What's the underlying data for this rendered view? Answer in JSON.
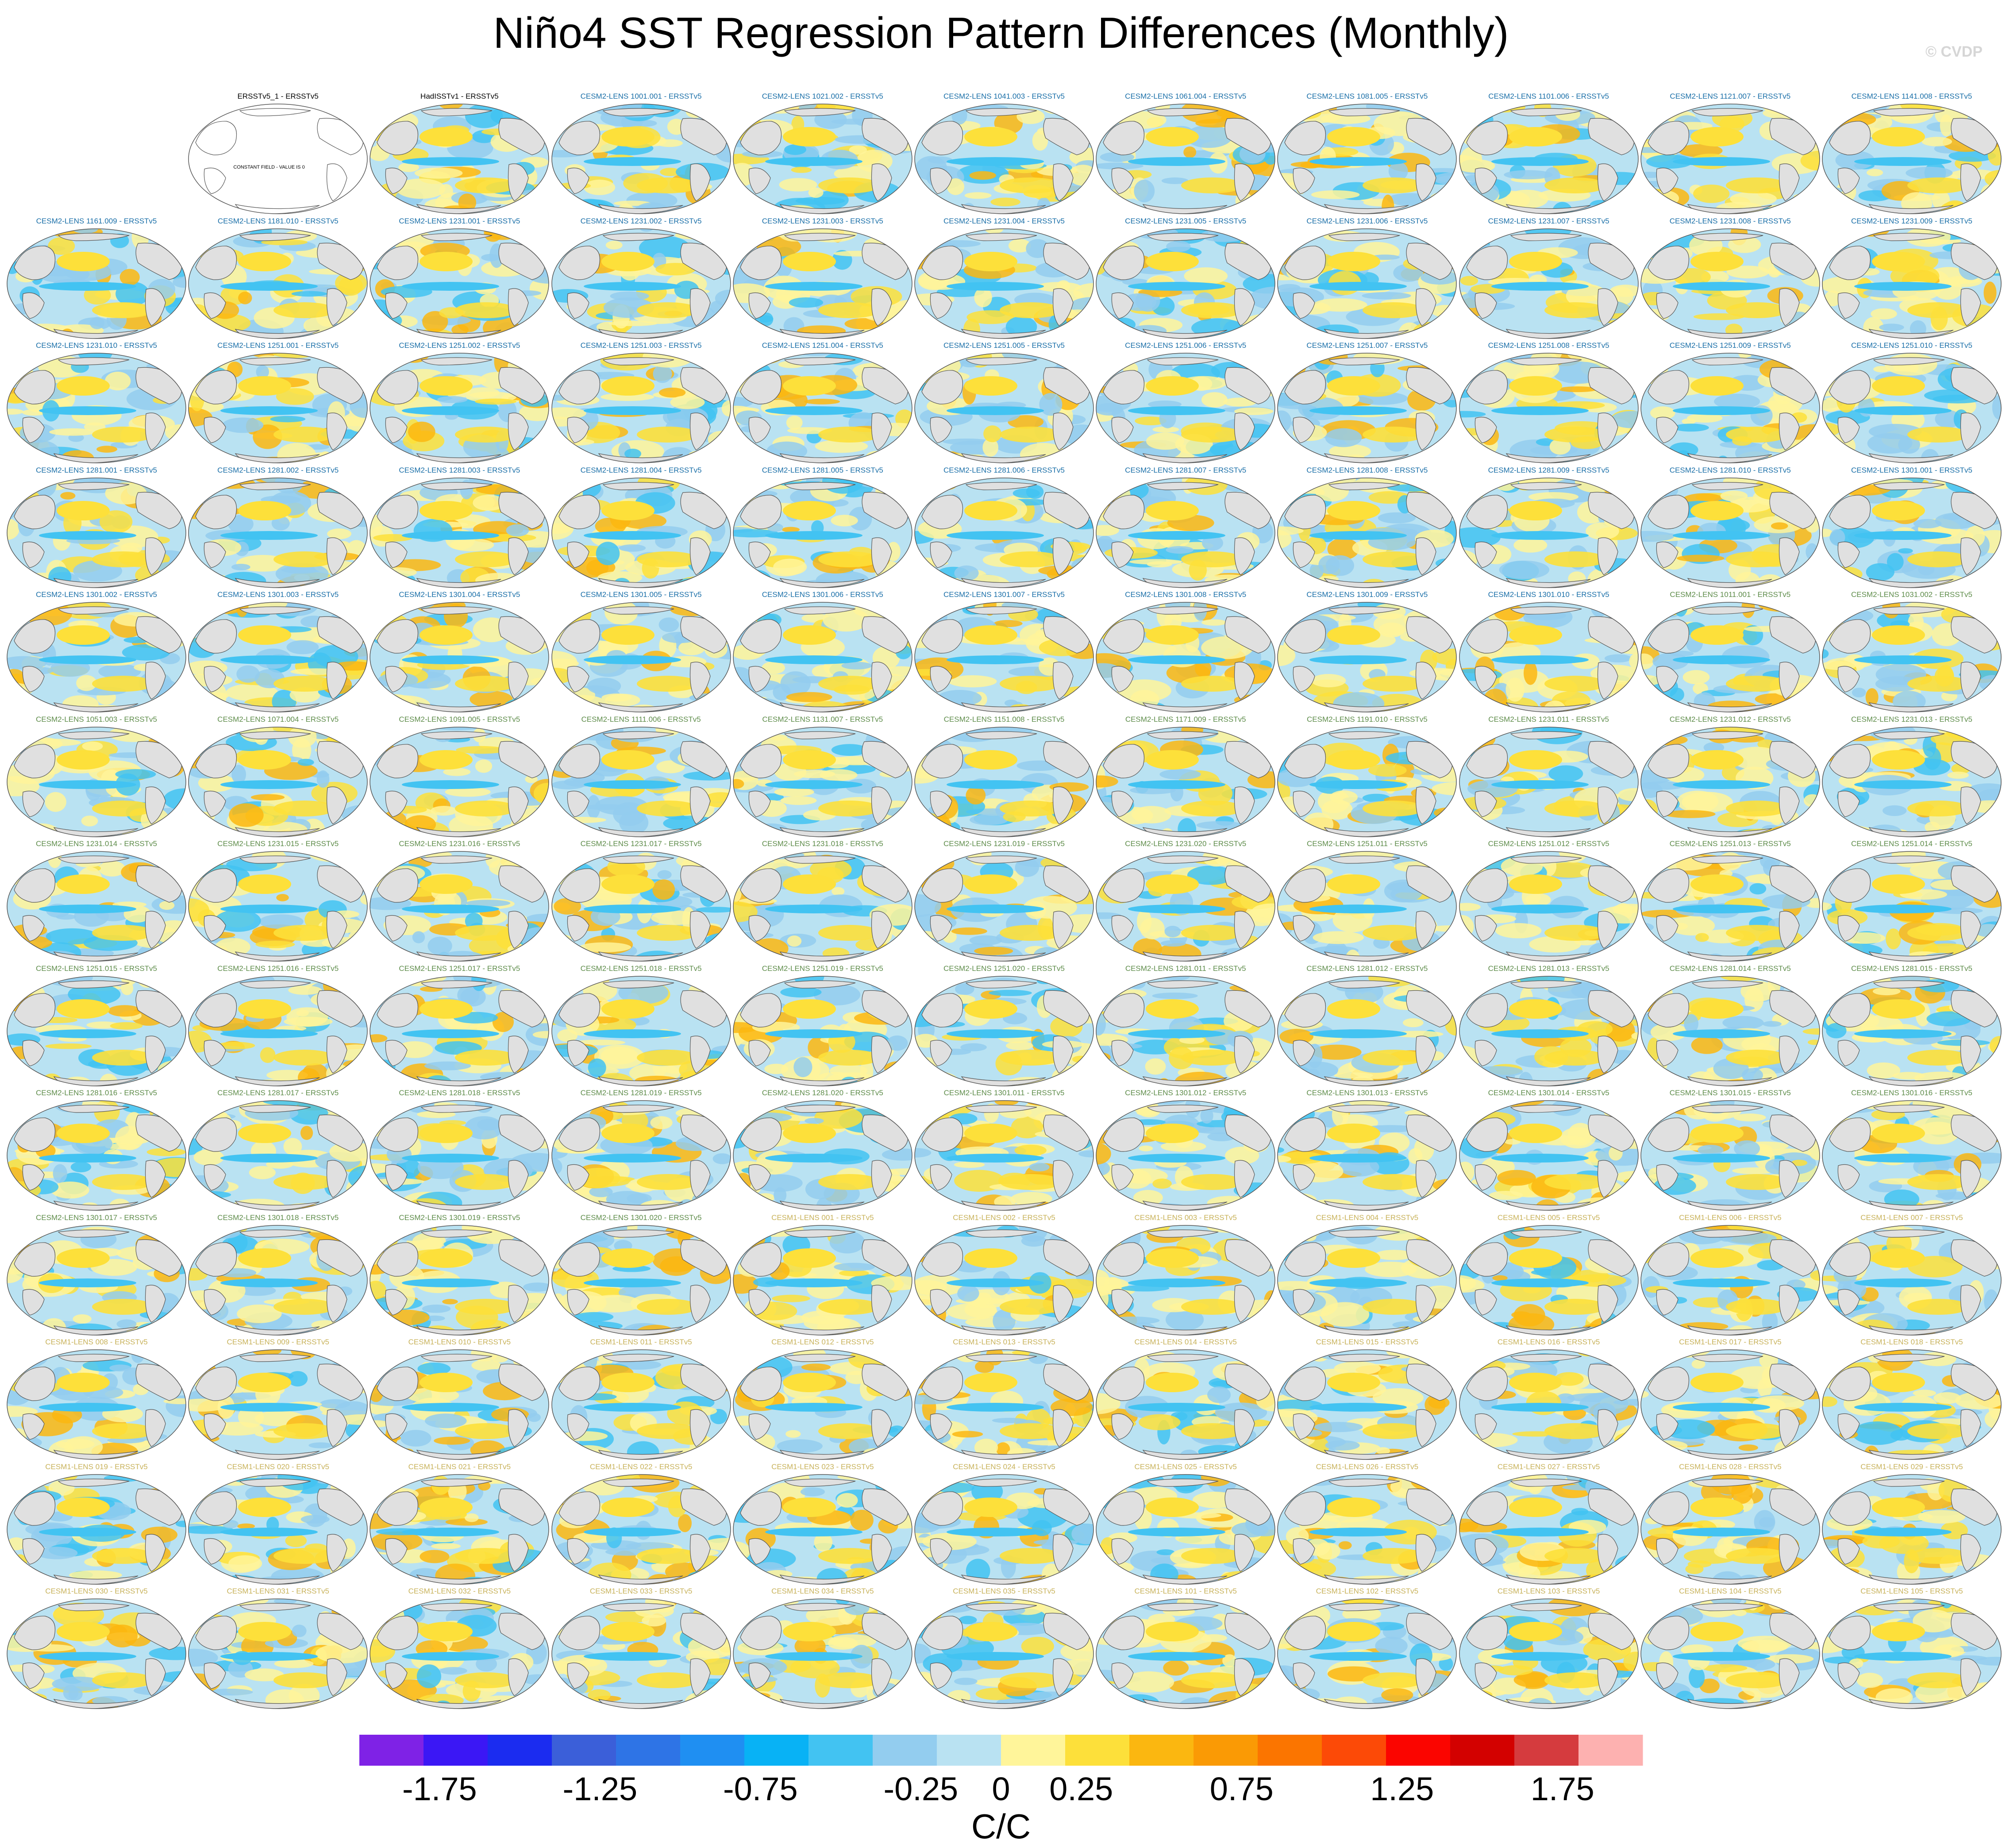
{
  "title": "Niño4 SST Regression Pattern Differences (Monthly)",
  "watermark": "© CVDP",
  "colors": {
    "cesm2_title": "#1a6fa8",
    "cesm2_b_title": "#5e8c4a",
    "cesm1_title": "#c8b25a",
    "obs_title": "#000000",
    "land": "#e0e0e0",
    "map_outline": "#555555"
  },
  "chart_data": {
    "type": "heatmap",
    "projection": "robinson-like global map panels",
    "panels": [
      {
        "title": "ERSSTv5_1 - ERSSTv5",
        "group": "obs",
        "empty_note": "CONSTANT FIELD - VALUE IS 0"
      },
      {
        "title": "HadISSTv1 - ERSSTv5",
        "group": "obs"
      },
      {
        "title": "CESM2-LENS 1001.001 - ERSSTv5",
        "group": "cesm2"
      },
      {
        "title": "CESM2-LENS 1021.002 - ERSSTv5",
        "group": "cesm2"
      },
      {
        "title": "CESM2-LENS 1041.003 - ERSSTv5",
        "group": "cesm2"
      },
      {
        "title": "CESM2-LENS 1061.004 - ERSSTv5",
        "group": "cesm2"
      },
      {
        "title": "CESM2-LENS 1081.005 - ERSSTv5",
        "group": "cesm2"
      },
      {
        "title": "CESM2-LENS 1101.006 - ERSSTv5",
        "group": "cesm2"
      },
      {
        "title": "CESM2-LENS 1121.007 - ERSSTv5",
        "group": "cesm2"
      },
      {
        "title": "CESM2-LENS 1141.008 - ERSSTv5",
        "group": "cesm2"
      },
      {
        "title": "CESM2-LENS 1161.009 - ERSSTv5",
        "group": "cesm2"
      },
      {
        "title": "CESM2-LENS 1181.010 - ERSSTv5",
        "group": "cesm2"
      },
      {
        "title": "CESM2-LENS 1231.001 - ERSSTv5",
        "group": "cesm2"
      },
      {
        "title": "CESM2-LENS 1231.002 - ERSSTv5",
        "group": "cesm2"
      },
      {
        "title": "CESM2-LENS 1231.003 - ERSSTv5",
        "group": "cesm2"
      },
      {
        "title": "CESM2-LENS 1231.004 - ERSSTv5",
        "group": "cesm2"
      },
      {
        "title": "CESM2-LENS 1231.005 - ERSSTv5",
        "group": "cesm2"
      },
      {
        "title": "CESM2-LENS 1231.006 - ERSSTv5",
        "group": "cesm2"
      },
      {
        "title": "CESM2-LENS 1231.007 - ERSSTv5",
        "group": "cesm2"
      },
      {
        "title": "CESM2-LENS 1231.008 - ERSSTv5",
        "group": "cesm2"
      },
      {
        "title": "CESM2-LENS 1231.009 - ERSSTv5",
        "group": "cesm2"
      },
      {
        "title": "CESM2-LENS 1231.010 - ERSSTv5",
        "group": "cesm2"
      },
      {
        "title": "CESM2-LENS 1251.001 - ERSSTv5",
        "group": "cesm2"
      },
      {
        "title": "CESM2-LENS 1251.002 - ERSSTv5",
        "group": "cesm2"
      },
      {
        "title": "CESM2-LENS 1251.003 - ERSSTv5",
        "group": "cesm2"
      },
      {
        "title": "CESM2-LENS 1251.004 - ERSSTv5",
        "group": "cesm2"
      },
      {
        "title": "CESM2-LENS 1251.005 - ERSSTv5",
        "group": "cesm2"
      },
      {
        "title": "CESM2-LENS 1251.006 - ERSSTv5",
        "group": "cesm2"
      },
      {
        "title": "CESM2-LENS 1251.007 - ERSSTv5",
        "group": "cesm2"
      },
      {
        "title": "CESM2-LENS 1251.008 - ERSSTv5",
        "group": "cesm2"
      },
      {
        "title": "CESM2-LENS 1251.009 - ERSSTv5",
        "group": "cesm2"
      },
      {
        "title": "CESM2-LENS 1251.010 - ERSSTv5",
        "group": "cesm2"
      },
      {
        "title": "CESM2-LENS 1281.001 - ERSSTv5",
        "group": "cesm2"
      },
      {
        "title": "CESM2-LENS 1281.002 - ERSSTv5",
        "group": "cesm2"
      },
      {
        "title": "CESM2-LENS 1281.003 - ERSSTv5",
        "group": "cesm2"
      },
      {
        "title": "CESM2-LENS 1281.004 - ERSSTv5",
        "group": "cesm2"
      },
      {
        "title": "CESM2-LENS 1281.005 - ERSSTv5",
        "group": "cesm2"
      },
      {
        "title": "CESM2-LENS 1281.006 - ERSSTv5",
        "group": "cesm2"
      },
      {
        "title": "CESM2-LENS 1281.007 - ERSSTv5",
        "group": "cesm2"
      },
      {
        "title": "CESM2-LENS 1281.008 - ERSSTv5",
        "group": "cesm2"
      },
      {
        "title": "CESM2-LENS 1281.009 - ERSSTv5",
        "group": "cesm2"
      },
      {
        "title": "CESM2-LENS 1281.010 - ERSSTv5",
        "group": "cesm2"
      },
      {
        "title": "CESM2-LENS 1301.001 - ERSSTv5",
        "group": "cesm2"
      },
      {
        "title": "CESM2-LENS 1301.002 - ERSSTv5",
        "group": "cesm2"
      },
      {
        "title": "CESM2-LENS 1301.003 - ERSSTv5",
        "group": "cesm2"
      },
      {
        "title": "CESM2-LENS 1301.004 - ERSSTv5",
        "group": "cesm2"
      },
      {
        "title": "CESM2-LENS 1301.005 - ERSSTv5",
        "group": "cesm2"
      },
      {
        "title": "CESM2-LENS 1301.006 - ERSSTv5",
        "group": "cesm2"
      },
      {
        "title": "CESM2-LENS 1301.007 - ERSSTv5",
        "group": "cesm2"
      },
      {
        "title": "CESM2-LENS 1301.008 - ERSSTv5",
        "group": "cesm2"
      },
      {
        "title": "CESM2-LENS 1301.009 - ERSSTv5",
        "group": "cesm2"
      },
      {
        "title": "CESM2-LENS 1301.010 - ERSSTv5",
        "group": "cesm2"
      },
      {
        "title": "CESM2-LENS 1011.001 - ERSSTv5",
        "group": "cesm2b"
      },
      {
        "title": "CESM2-LENS 1031.002 - ERSSTv5",
        "group": "cesm2b"
      },
      {
        "title": "CESM2-LENS 1051.003 - ERSSTv5",
        "group": "cesm2b"
      },
      {
        "title": "CESM2-LENS 1071.004 - ERSSTv5",
        "group": "cesm2b"
      },
      {
        "title": "CESM2-LENS 1091.005 - ERSSTv5",
        "group": "cesm2b"
      },
      {
        "title": "CESM2-LENS 1111.006 - ERSSTv5",
        "group": "cesm2b"
      },
      {
        "title": "CESM2-LENS 1131.007 - ERSSTv5",
        "group": "cesm2b"
      },
      {
        "title": "CESM2-LENS 1151.008 - ERSSTv5",
        "group": "cesm2b"
      },
      {
        "title": "CESM2-LENS 1171.009 - ERSSTv5",
        "group": "cesm2b"
      },
      {
        "title": "CESM2-LENS 1191.010 - ERSSTv5",
        "group": "cesm2b"
      },
      {
        "title": "CESM2-LENS 1231.011 - ERSSTv5",
        "group": "cesm2b"
      },
      {
        "title": "CESM2-LENS 1231.012 - ERSSTv5",
        "group": "cesm2b"
      },
      {
        "title": "CESM2-LENS 1231.013 - ERSSTv5",
        "group": "cesm2b"
      },
      {
        "title": "CESM2-LENS 1231.014 - ERSSTv5",
        "group": "cesm2b"
      },
      {
        "title": "CESM2-LENS 1231.015 - ERSSTv5",
        "group": "cesm2b"
      },
      {
        "title": "CESM2-LENS 1231.016 - ERSSTv5",
        "group": "cesm2b"
      },
      {
        "title": "CESM2-LENS 1231.017 - ERSSTv5",
        "group": "cesm2b"
      },
      {
        "title": "CESM2-LENS 1231.018 - ERSSTv5",
        "group": "cesm2b"
      },
      {
        "title": "CESM2-LENS 1231.019 - ERSSTv5",
        "group": "cesm2b"
      },
      {
        "title": "CESM2-LENS 1231.020 - ERSSTv5",
        "group": "cesm2b"
      },
      {
        "title": "CESM2-LENS 1251.011 - ERSSTv5",
        "group": "cesm2b"
      },
      {
        "title": "CESM2-LENS 1251.012 - ERSSTv5",
        "group": "cesm2b"
      },
      {
        "title": "CESM2-LENS 1251.013 - ERSSTv5",
        "group": "cesm2b"
      },
      {
        "title": "CESM2-LENS 1251.014 - ERSSTv5",
        "group": "cesm2b"
      },
      {
        "title": "CESM2-LENS 1251.015 - ERSSTv5",
        "group": "cesm2b"
      },
      {
        "title": "CESM2-LENS 1251.016 - ERSSTv5",
        "group": "cesm2b"
      },
      {
        "title": "CESM2-LENS 1251.017 - ERSSTv5",
        "group": "cesm2b"
      },
      {
        "title": "CESM2-LENS 1251.018 - ERSSTv5",
        "group": "cesm2b"
      },
      {
        "title": "CESM2-LENS 1251.019 - ERSSTv5",
        "group": "cesm2b"
      },
      {
        "title": "CESM2-LENS 1251.020 - ERSSTv5",
        "group": "cesm2b"
      },
      {
        "title": "CESM2-LENS 1281.011 - ERSSTv5",
        "group": "cesm2b"
      },
      {
        "title": "CESM2-LENS 1281.012 - ERSSTv5",
        "group": "cesm2b"
      },
      {
        "title": "CESM2-LENS 1281.013 - ERSSTv5",
        "group": "cesm2b"
      },
      {
        "title": "CESM2-LENS 1281.014 - ERSSTv5",
        "group": "cesm2b"
      },
      {
        "title": "CESM2-LENS 1281.015 - ERSSTv5",
        "group": "cesm2b"
      },
      {
        "title": "CESM2-LENS 1281.016 - ERSSTv5",
        "group": "cesm2b"
      },
      {
        "title": "CESM2-LENS 1281.017 - ERSSTv5",
        "group": "cesm2b"
      },
      {
        "title": "CESM2-LENS 1281.018 - ERSSTv5",
        "group": "cesm2b"
      },
      {
        "title": "CESM2-LENS 1281.019 - ERSSTv5",
        "group": "cesm2b"
      },
      {
        "title": "CESM2-LENS 1281.020 - ERSSTv5",
        "group": "cesm2b"
      },
      {
        "title": "CESM2-LENS 1301.011 - ERSSTv5",
        "group": "cesm2b"
      },
      {
        "title": "CESM2-LENS 1301.012 - ERSSTv5",
        "group": "cesm2b"
      },
      {
        "title": "CESM2-LENS 1301.013 - ERSSTv5",
        "group": "cesm2b"
      },
      {
        "title": "CESM2-LENS 1301.014 - ERSSTv5",
        "group": "cesm2b"
      },
      {
        "title": "CESM2-LENS 1301.015 - ERSSTv5",
        "group": "cesm2b"
      },
      {
        "title": "CESM2-LENS 1301.016 - ERSSTv5",
        "group": "cesm2b"
      },
      {
        "title": "CESM2-LENS 1301.017 - ERSSTv5",
        "group": "cesm2b"
      },
      {
        "title": "CESM2-LENS 1301.018 - ERSSTv5",
        "group": "cesm2b"
      },
      {
        "title": "CESM2-LENS 1301.019 - ERSSTv5",
        "group": "cesm2b"
      },
      {
        "title": "CESM2-LENS 1301.020 - ERSSTv5",
        "group": "cesm2b"
      },
      {
        "title": "CESM1-LENS 001 - ERSSTv5",
        "group": "cesm1"
      },
      {
        "title": "CESM1-LENS 002 - ERSSTv5",
        "group": "cesm1"
      },
      {
        "title": "CESM1-LENS 003 - ERSSTv5",
        "group": "cesm1"
      },
      {
        "title": "CESM1-LENS 004 - ERSSTv5",
        "group": "cesm1"
      },
      {
        "title": "CESM1-LENS 005 - ERSSTv5",
        "group": "cesm1"
      },
      {
        "title": "CESM1-LENS 006 - ERSSTv5",
        "group": "cesm1"
      },
      {
        "title": "CESM1-LENS 007 - ERSSTv5",
        "group": "cesm1"
      },
      {
        "title": "CESM1-LENS 008 - ERSSTv5",
        "group": "cesm1"
      },
      {
        "title": "CESM1-LENS 009 - ERSSTv5",
        "group": "cesm1"
      },
      {
        "title": "CESM1-LENS 010 - ERSSTv5",
        "group": "cesm1"
      },
      {
        "title": "CESM1-LENS 011 - ERSSTv5",
        "group": "cesm1"
      },
      {
        "title": "CESM1-LENS 012 - ERSSTv5",
        "group": "cesm1"
      },
      {
        "title": "CESM1-LENS 013 - ERSSTv5",
        "group": "cesm1"
      },
      {
        "title": "CESM1-LENS 014 - ERSSTv5",
        "group": "cesm1"
      },
      {
        "title": "CESM1-LENS 015 - ERSSTv5",
        "group": "cesm1"
      },
      {
        "title": "CESM1-LENS 016 - ERSSTv5",
        "group": "cesm1"
      },
      {
        "title": "CESM1-LENS 017 - ERSSTv5",
        "group": "cesm1"
      },
      {
        "title": "CESM1-LENS 018 - ERSSTv5",
        "group": "cesm1"
      },
      {
        "title": "CESM1-LENS 019 - ERSSTv5",
        "group": "cesm1"
      },
      {
        "title": "CESM1-LENS 020 - ERSSTv5",
        "group": "cesm1"
      },
      {
        "title": "CESM1-LENS 021 - ERSSTv5",
        "group": "cesm1"
      },
      {
        "title": "CESM1-LENS 022 - ERSSTv5",
        "group": "cesm1"
      },
      {
        "title": "CESM1-LENS 023 - ERSSTv5",
        "group": "cesm1"
      },
      {
        "title": "CESM1-LENS 024 - ERSSTv5",
        "group": "cesm1"
      },
      {
        "title": "CESM1-LENS 025 - ERSSTv5",
        "group": "cesm1"
      },
      {
        "title": "CESM1-LENS 026 - ERSSTv5",
        "group": "cesm1"
      },
      {
        "title": "CESM1-LENS 027 - ERSSTv5",
        "group": "cesm1"
      },
      {
        "title": "CESM1-LENS 028 - ERSSTv5",
        "group": "cesm1"
      },
      {
        "title": "CESM1-LENS 029 - ERSSTv5",
        "group": "cesm1"
      },
      {
        "title": "CESM1-LENS 030 - ERSSTv5",
        "group": "cesm1"
      },
      {
        "title": "CESM1-LENS 031 - ERSSTv5",
        "group": "cesm1"
      },
      {
        "title": "CESM1-LENS 032 - ERSSTv5",
        "group": "cesm1"
      },
      {
        "title": "CESM1-LENS 033 - ERSSTv5",
        "group": "cesm1"
      },
      {
        "title": "CESM1-LENS 034 - ERSSTv5",
        "group": "cesm1"
      },
      {
        "title": "CESM1-LENS 035 - ERSSTv5",
        "group": "cesm1"
      },
      {
        "title": "CESM1-LENS 101 - ERSSTv5",
        "group": "cesm1"
      },
      {
        "title": "CESM1-LENS 102 - ERSSTv5",
        "group": "cesm1"
      },
      {
        "title": "CESM1-LENS 103 - ERSSTv5",
        "group": "cesm1"
      },
      {
        "title": "CESM1-LENS 104 - ERSSTv5",
        "group": "cesm1"
      },
      {
        "title": "CESM1-LENS 105 - ERSSTv5",
        "group": "cesm1"
      }
    ],
    "colorbar": {
      "units": "C/C",
      "min": -2.0,
      "max": 2.0,
      "step": 0.25,
      "colors": [
        "#7f22e6",
        "#3b17f5",
        "#1b2cf0",
        "#3b5fd9",
        "#2e74e6",
        "#1f8ff2",
        "#08b2f5",
        "#42c3f2",
        "#93cdef",
        "#b9e2f2",
        "#fff59a",
        "#fde03a",
        "#fbb710",
        "#fa9a05",
        "#fb7500",
        "#fc4a07",
        "#fb0500",
        "#d30100",
        "#d53b3e",
        "#fdb1b0"
      ],
      "tick_labels": [
        "-1.75",
        "-1.25",
        "-0.75",
        "-0.25",
        "0",
        "0.25",
        "0.75",
        "1.25",
        "1.75"
      ],
      "tick_values": [
        -1.75,
        -1.25,
        -0.75,
        -0.25,
        0,
        0.25,
        0.75,
        1.25,
        1.75
      ]
    }
  }
}
